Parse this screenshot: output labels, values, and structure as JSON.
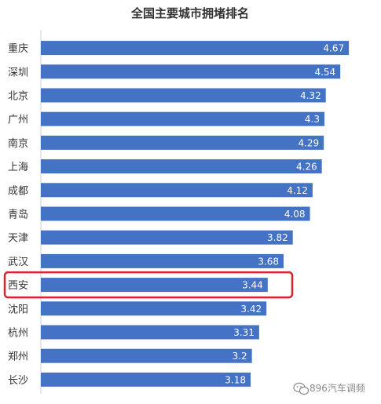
{
  "chart_data": {
    "type": "bar",
    "orientation": "horizontal",
    "title": "全国主要城市拥堵排名",
    "categories": [
      "重庆",
      "深圳",
      "北京",
      "广州",
      "南京",
      "上海",
      "成都",
      "青岛",
      "天津",
      "武汉",
      "西安",
      "沈阳",
      "杭州",
      "郑州",
      "长沙"
    ],
    "values": [
      4.67,
      4.54,
      4.32,
      4.3,
      4.29,
      4.26,
      4.12,
      4.08,
      3.82,
      3.68,
      3.44,
      3.42,
      3.31,
      3.2,
      3.18
    ],
    "value_labels": [
      "4.67",
      "4.54",
      "4.32",
      "4.3",
      "4.29",
      "4.26",
      "4.12",
      "4.08",
      "3.82",
      "3.68",
      "3.44",
      "3.42",
      "3.31",
      "3.2",
      "3.18"
    ],
    "xlim": [
      0,
      5.05
    ],
    "grid": false,
    "legend": "none",
    "bar_color": "#4472c4",
    "highlighted_category": "西安",
    "highlight_color": "#d9232e"
  },
  "watermark": {
    "text": "896汽车调频",
    "icon": "wechat-icon"
  }
}
